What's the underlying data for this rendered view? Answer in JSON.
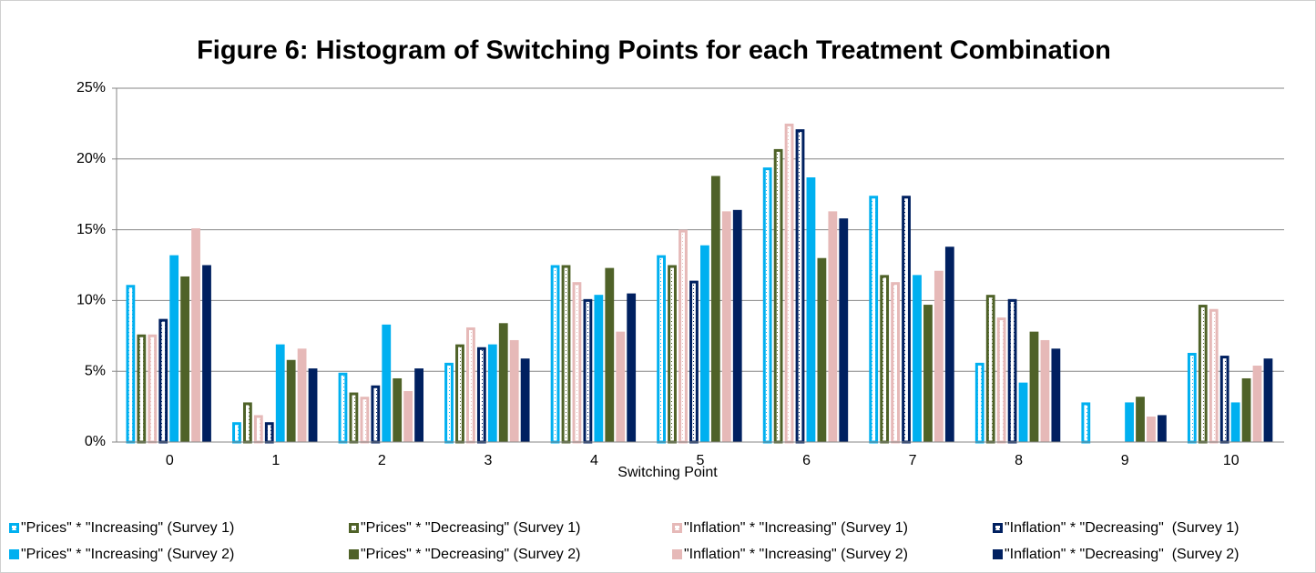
{
  "chart_data": {
    "type": "bar",
    "title": "Figure 6: Histogram of Switching Points for each Treatment Combination",
    "x_label": "Switching Point",
    "categories": [
      "0",
      "1",
      "2",
      "3",
      "4",
      "5",
      "6",
      "7",
      "8",
      "9",
      "10"
    ],
    "ylim": [
      0,
      25
    ],
    "yticks": [
      {
        "value": 0,
        "label": "0%"
      },
      {
        "value": 5,
        "label": "5%"
      },
      {
        "value": 10,
        "label": "10%"
      },
      {
        "value": 15,
        "label": "15%"
      },
      {
        "value": 20,
        "label": "20%"
      },
      {
        "value": 25,
        "label": "25%"
      }
    ],
    "grid": true,
    "legend": "bottom",
    "series": [
      {
        "name": "\"Prices\" * \"Increasing\" (Survey 1)",
        "color": "#00b0f0",
        "style": "outline",
        "values": [
          11.1,
          1.4,
          4.9,
          5.6,
          12.5,
          13.2,
          19.4,
          17.4,
          5.6,
          2.8,
          6.3
        ]
      },
      {
        "name": "\"Prices\" * \"Decreasing\" (Survey 1)",
        "color": "#4f6228",
        "style": "outline",
        "values": [
          7.6,
          2.8,
          3.5,
          6.9,
          12.5,
          12.5,
          20.7,
          11.8,
          10.4,
          0,
          9.7
        ]
      },
      {
        "name": "\"Inflation\" * \"Increasing\" (Survey 1)",
        "color": "#e6b9b8",
        "style": "outline",
        "values": [
          7.6,
          1.9,
          3.2,
          8.1,
          11.3,
          15.0,
          22.5,
          11.3,
          8.8,
          0,
          9.4
        ]
      },
      {
        "name": "\"Inflation\" * \"Decreasing\"  (Survey 1)",
        "color": "#002060",
        "style": "outline",
        "values": [
          8.7,
          1.4,
          4.0,
          6.7,
          10.1,
          11.4,
          22.1,
          17.4,
          10.1,
          0,
          6.1
        ]
      },
      {
        "name": "\"Prices\" * \"Increasing\" (Survey 2)",
        "color": "#00b0f0",
        "style": "filled",
        "values": [
          13.2,
          6.9,
          8.3,
          6.9,
          10.4,
          13.9,
          18.7,
          11.8,
          4.2,
          2.8,
          2.8
        ]
      },
      {
        "name": "\"Prices\" * \"Decreasing\" (Survey 2)",
        "color": "#4f6228",
        "style": "filled",
        "values": [
          11.7,
          5.8,
          4.5,
          8.4,
          12.3,
          18.8,
          13.0,
          9.7,
          7.8,
          3.2,
          4.5
        ]
      },
      {
        "name": "\"Inflation\" * \"Increasing\" (Survey 2)",
        "color": "#e6b9b8",
        "style": "filled",
        "values": [
          15.1,
          6.6,
          3.6,
          7.2,
          7.8,
          16.3,
          16.3,
          12.1,
          7.2,
          1.8,
          5.4
        ]
      },
      {
        "name": "\"Inflation\" * \"Decreasing\"  (Survey 2)",
        "color": "#002060",
        "style": "filled",
        "values": [
          12.5,
          5.2,
          5.2,
          5.9,
          10.5,
          16.4,
          15.8,
          13.8,
          6.6,
          1.9,
          5.9
        ]
      }
    ]
  }
}
